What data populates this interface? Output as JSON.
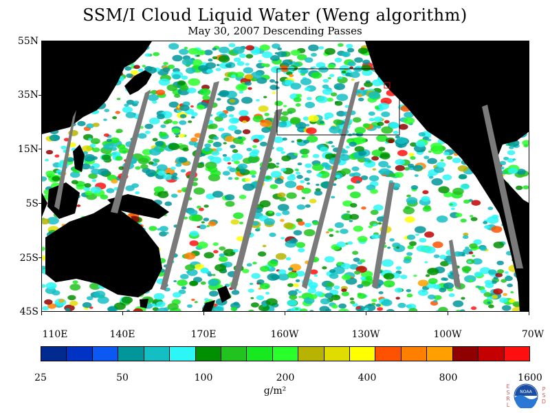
{
  "title": "SSM/I Cloud Liquid Water (Weng algorithm)",
  "subtitle": "May 30, 2007  Descending Passes",
  "lat_labels": [
    "55N",
    "35N",
    "15N",
    "5S",
    "25S",
    "45S"
  ],
  "lon_labels": [
    "110E",
    "140E",
    "170E",
    "160W",
    "130W",
    "100W",
    "70W"
  ],
  "colorbar": {
    "colors": [
      "#002a8f",
      "#0033c4",
      "#0b58f3",
      "#00969a",
      "#14bfc4",
      "#2cf6f6",
      "#008f00",
      "#22c21f",
      "#18e820",
      "#29ff2b",
      "#b7b300",
      "#e0dc00",
      "#ffff00",
      "#ff5200",
      "#ff8000",
      "#ffa000",
      "#900000",
      "#c40000",
      "#ff1010"
    ],
    "labels": [
      "25",
      "50",
      "100",
      "200",
      "400",
      "800",
      "1600"
    ]
  },
  "units": "g/m²",
  "logo": {
    "name": "NOAA",
    "left_letters": [
      "E",
      "S",
      "R",
      "L"
    ],
    "right_letters": [
      "P",
      "S",
      "D"
    ]
  },
  "map_colors": {
    "land": "#000000",
    "gap": "#7a7a7a",
    "ocean": "#ffffff"
  }
}
